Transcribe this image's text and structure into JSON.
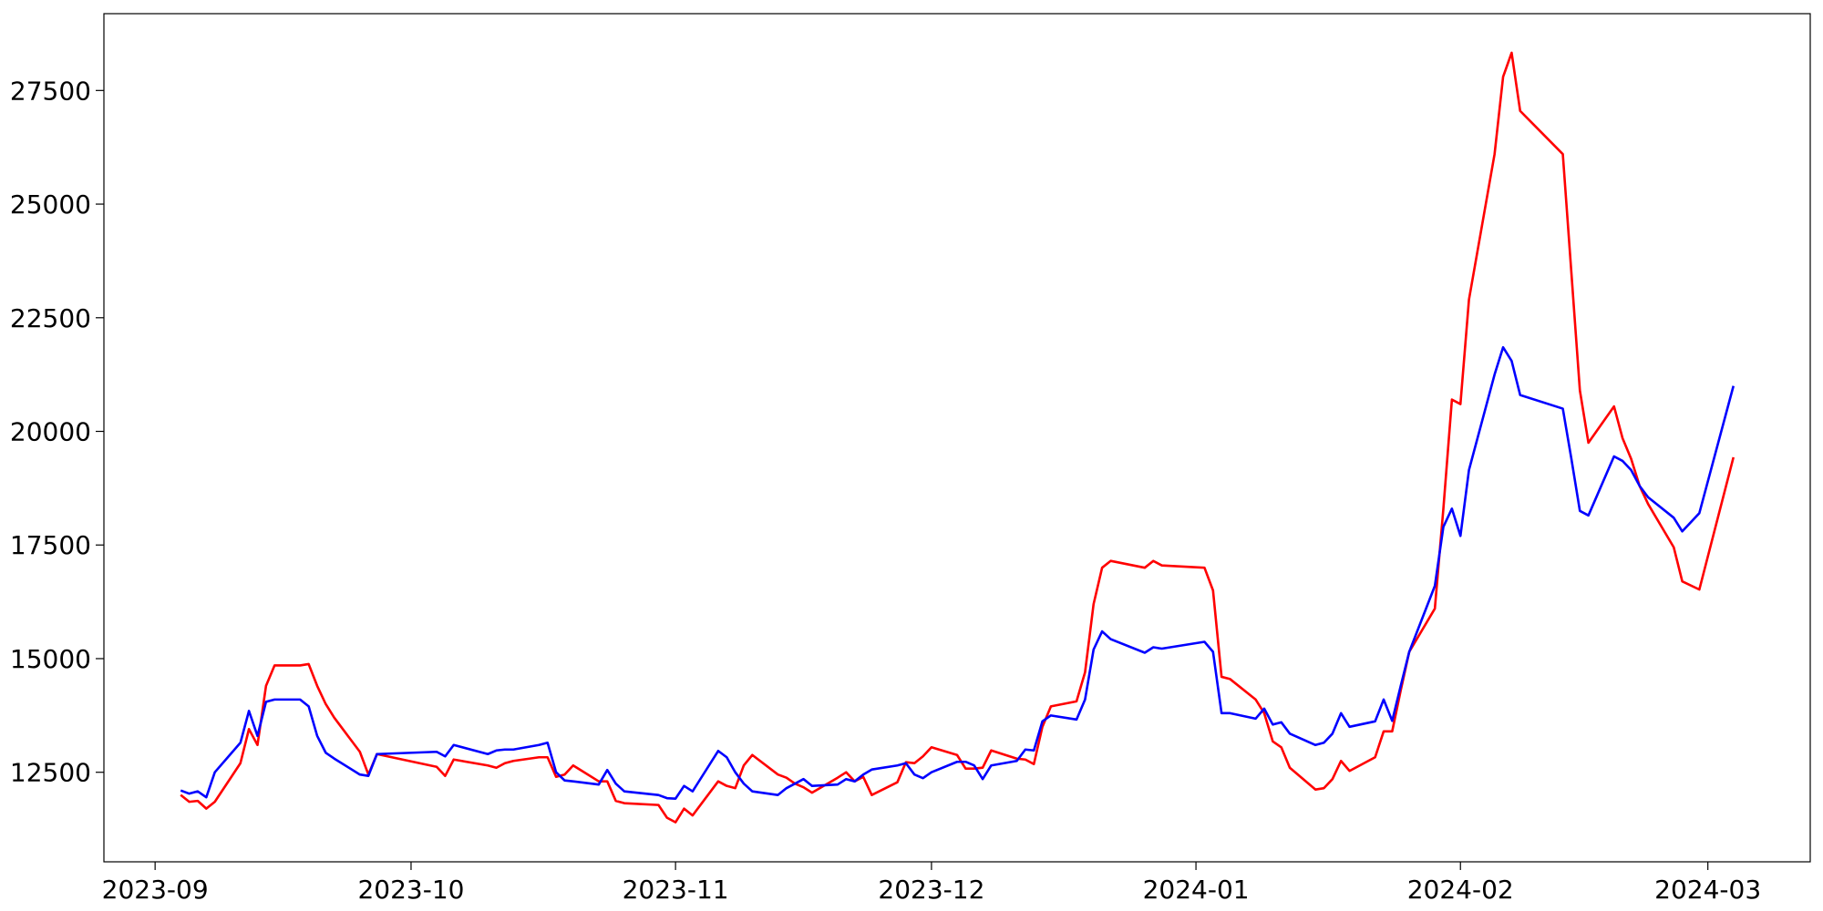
{
  "chart_data": {
    "type": "line",
    "x": [
      "2023-09-04",
      "2023-09-05",
      "2023-09-06",
      "2023-09-07",
      "2023-09-08",
      "2023-09-11",
      "2023-09-12",
      "2023-09-13",
      "2023-09-14",
      "2023-09-15",
      "2023-09-18",
      "2023-09-19",
      "2023-09-20",
      "2023-09-21",
      "2023-09-22",
      "2023-09-25",
      "2023-09-26",
      "2023-09-27",
      "2023-10-04",
      "2023-10-05",
      "2023-10-06",
      "2023-10-10",
      "2023-10-11",
      "2023-10-12",
      "2023-10-13",
      "2023-10-16",
      "2023-10-17",
      "2023-10-18",
      "2023-10-19",
      "2023-10-20",
      "2023-10-23",
      "2023-10-24",
      "2023-10-25",
      "2023-10-26",
      "2023-10-30",
      "2023-10-31",
      "2023-11-01",
      "2023-11-02",
      "2023-11-03",
      "2023-11-06",
      "2023-11-07",
      "2023-11-08",
      "2023-11-09",
      "2023-11-10",
      "2023-11-13",
      "2023-11-14",
      "2023-11-15",
      "2023-11-16",
      "2023-11-17",
      "2023-11-20",
      "2023-11-21",
      "2023-11-22",
      "2023-11-23",
      "2023-11-24",
      "2023-11-27",
      "2023-11-28",
      "2023-11-29",
      "2023-11-30",
      "2023-12-01",
      "2023-12-04",
      "2023-12-05",
      "2023-12-06",
      "2023-12-07",
      "2023-12-08",
      "2023-12-11",
      "2023-12-12",
      "2023-12-13",
      "2023-12-14",
      "2023-12-15",
      "2023-12-18",
      "2023-12-19",
      "2023-12-20",
      "2023-12-21",
      "2023-12-22",
      "2023-12-26",
      "2023-12-27",
      "2023-12-28",
      "2024-01-02",
      "2024-01-03",
      "2024-01-04",
      "2024-01-05",
      "2024-01-08",
      "2024-01-09",
      "2024-01-10",
      "2024-01-11",
      "2024-01-12",
      "2024-01-15",
      "2024-01-16",
      "2024-01-17",
      "2024-01-18",
      "2024-01-19",
      "2024-01-22",
      "2024-01-23",
      "2024-01-24",
      "2024-01-25",
      "2024-01-26",
      "2024-01-29",
      "2024-01-30",
      "2024-01-31",
      "2024-02-01",
      "2024-02-02",
      "2024-02-05",
      "2024-02-06",
      "2024-02-07",
      "2024-02-08",
      "2024-02-13",
      "2024-02-14",
      "2024-02-15",
      "2024-02-16",
      "2024-02-19",
      "2024-02-20",
      "2024-02-21",
      "2024-02-22",
      "2024-02-23",
      "2024-02-26",
      "2024-02-27",
      "2024-02-29",
      "2024-03-04"
    ],
    "series": [
      {
        "color": "#ff0000",
        "values": [
          12000,
          11850,
          11870,
          11700,
          11850,
          12700,
          13450,
          13100,
          14400,
          14850,
          14850,
          14880,
          14400,
          14000,
          13700,
          12950,
          12450,
          12900,
          12620,
          12420,
          12780,
          12650,
          12600,
          12700,
          12750,
          12830,
          12830,
          12400,
          12450,
          12650,
          12300,
          12300,
          11870,
          11820,
          11780,
          11500,
          11400,
          11700,
          11550,
          12300,
          12200,
          12150,
          12650,
          12880,
          12450,
          12380,
          12250,
          12170,
          12050,
          12380,
          12500,
          12300,
          12400,
          12000,
          12280,
          12720,
          12700,
          12850,
          13050,
          12880,
          12580,
          12580,
          12600,
          12980,
          12800,
          12780,
          12680,
          13500,
          13950,
          14060,
          14700,
          16200,
          17000,
          17150,
          17000,
          17150,
          17050,
          17000,
          16500,
          14600,
          14550,
          14100,
          13800,
          13180,
          13050,
          12600,
          12120,
          12150,
          12350,
          12750,
          12530,
          12830,
          13400,
          13400,
          14300,
          15150,
          16100,
          18300,
          20700,
          20600,
          22900,
          26100,
          27800,
          28330,
          27050,
          26100,
          23500,
          20900,
          19750,
          20550,
          19850,
          19400,
          18800,
          18400,
          17450,
          16700,
          16520,
          19430
        ]
      },
      {
        "color": "#0000ff",
        "values": [
          12100,
          12030,
          12080,
          11950,
          12500,
          13150,
          13850,
          13300,
          14050,
          14100,
          14100,
          13950,
          13300,
          12930,
          12800,
          12450,
          12420,
          12900,
          12950,
          12850,
          13100,
          12900,
          12980,
          13000,
          13000,
          13100,
          13150,
          12500,
          12320,
          12300,
          12230,
          12550,
          12250,
          12080,
          12000,
          11930,
          11920,
          12200,
          12080,
          12970,
          12830,
          12500,
          12250,
          12080,
          12000,
          12150,
          12250,
          12350,
          12200,
          12230,
          12350,
          12300,
          12450,
          12560,
          12650,
          12700,
          12450,
          12370,
          12500,
          12730,
          12730,
          12650,
          12350,
          12650,
          12750,
          13000,
          12980,
          13620,
          13750,
          13660,
          14100,
          15200,
          15600,
          15430,
          15130,
          15250,
          15220,
          15370,
          15150,
          13800,
          13800,
          13680,
          13900,
          13550,
          13600,
          13350,
          13100,
          13150,
          13350,
          13800,
          13500,
          13620,
          14100,
          13630,
          14400,
          15150,
          16600,
          17900,
          18300,
          17700,
          19150,
          21250,
          21850,
          21550,
          20800,
          20500,
          19400,
          18250,
          18150,
          19450,
          19350,
          19150,
          18800,
          18550,
          18100,
          17800,
          18200,
          21000
        ]
      }
    ],
    "xlim": [
      "2023-08-26",
      "2024-03-13"
    ],
    "xticks": [
      {
        "value": "2023-09-01",
        "label": "2023-09"
      },
      {
        "value": "2023-10-01",
        "label": "2023-10"
      },
      {
        "value": "2023-11-01",
        "label": "2023-11"
      },
      {
        "value": "2023-12-01",
        "label": "2023-12"
      },
      {
        "value": "2024-01-01",
        "label": "2024-01"
      },
      {
        "value": "2024-02-01",
        "label": "2024-02"
      },
      {
        "value": "2024-03-01",
        "label": "2024-03"
      }
    ],
    "ylim": [
      10530,
      29190
    ],
    "yticks": [
      12500,
      15000,
      17500,
      20000,
      22500,
      25000,
      27500
    ],
    "grid": false
  }
}
